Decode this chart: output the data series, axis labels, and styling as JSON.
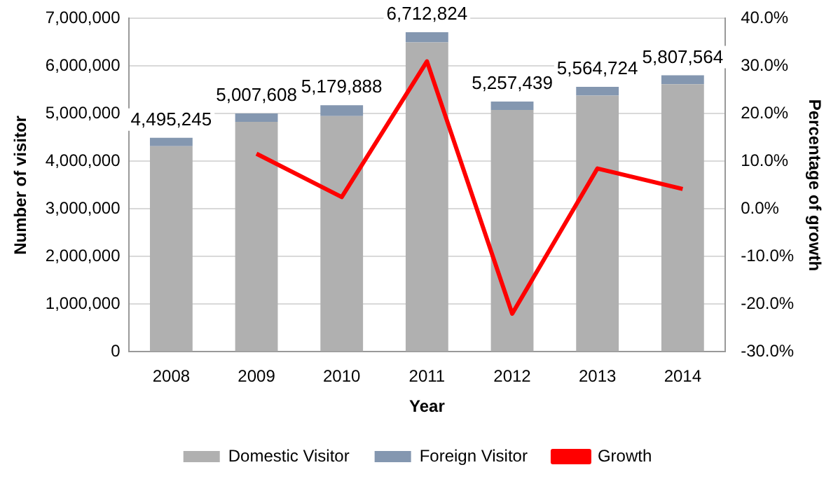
{
  "chart_data": {
    "type": "bar",
    "stacked": true,
    "xlabel": "Year",
    "ylabel": "Number of visitor",
    "y2label": "Percentage of growth",
    "categories": [
      "2008",
      "2009",
      "2010",
      "2011",
      "2012",
      "2013",
      "2014"
    ],
    "series": [
      {
        "name": "Domestic Visitor",
        "color": "#b0b0b0",
        "values": [
          4320000,
          4830000,
          4950000,
          6500000,
          5080000,
          5380000,
          5620000
        ]
      },
      {
        "name": "Foreign Visitor",
        "color": "#8497b0",
        "values": [
          175245,
          177608,
          229888,
          212824,
          177439,
          184724,
          187564
        ]
      },
      {
        "name": "Growth",
        "type": "line",
        "axis": "y2",
        "color": "#ff0000",
        "values": [
          null,
          11.6,
          2.5,
          31,
          -22,
          8.5,
          4.2
        ]
      }
    ],
    "totals": [
      "4,495,245",
      "5,007,608",
      "5,179,888",
      "6,712,824",
      "5,257,439",
      "5,564,724",
      "5,807,564"
    ],
    "ylim": [
      0,
      7000000
    ],
    "yticks": [
      0,
      {
        "value": 1000000,
        "label": "1,000,000"
      },
      {
        "value": 2000000,
        "label": "2,000,000"
      },
      {
        "value": 3000000,
        "label": "3,000,000"
      },
      {
        "value": 4000000,
        "label": "4,000,000"
      },
      {
        "value": 5000000,
        "label": "5,000,000"
      },
      {
        "value": 6000000,
        "label": "6,000,000"
      },
      {
        "value": 7000000,
        "label": "7,000,000"
      }
    ],
    "y2lim": [
      -30,
      40
    ],
    "y2ticks": [
      {
        "value": -30,
        "label": "-30.0%"
      },
      {
        "value": -20,
        "label": "-20.0%"
      },
      {
        "value": -10,
        "label": "-10.0%"
      },
      {
        "value": 0,
        "label": "0.0%"
      },
      {
        "value": 10,
        "label": "10.0%"
      },
      {
        "value": 20,
        "label": "20.0%"
      },
      {
        "value": 30,
        "label": "30.0%"
      },
      {
        "value": 40,
        "label": "40.0%"
      }
    ],
    "grid": "y",
    "legend": "bottom",
    "marker": "none"
  }
}
